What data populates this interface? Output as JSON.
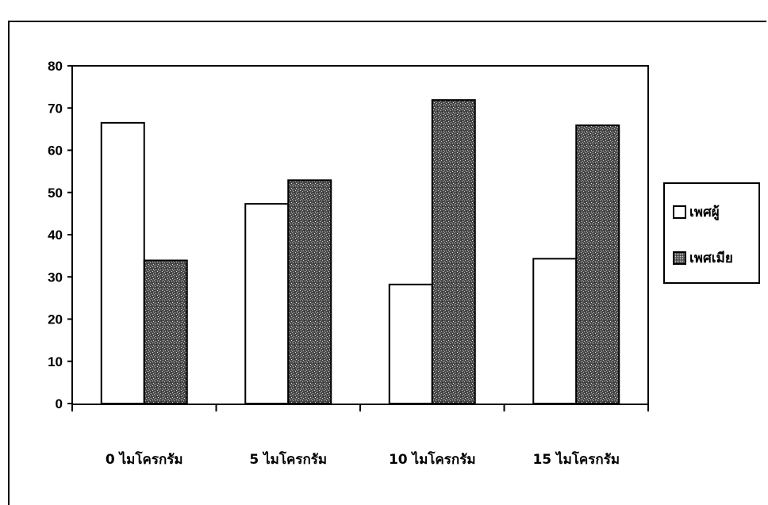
{
  "chart_data": {
    "type": "bar",
    "categories": [
      "0 ไมโครกรัม",
      "5 ไมโครกรัม",
      "10 ไมโครกรัม",
      "15 ไมโครกรัม"
    ],
    "series": [
      {
        "name": "เพศผู้",
        "values": [
          66.5,
          47.3,
          28.2,
          34.3
        ],
        "color": "#ffffff"
      },
      {
        "name": "เพศเมีย",
        "values": [
          33.9,
          52.9,
          71.9,
          65.9
        ],
        "color": "#555555"
      }
    ],
    "title": "",
    "xlabel": "",
    "ylabel": "",
    "ylim": [
      0,
      80
    ],
    "yticks": [
      0,
      10,
      20,
      30,
      40,
      50,
      60,
      70,
      80
    ],
    "grid": false,
    "legend_position": "right"
  },
  "legend": {
    "male_label": "เพศผู้",
    "female_label": "เพศเมีย"
  }
}
